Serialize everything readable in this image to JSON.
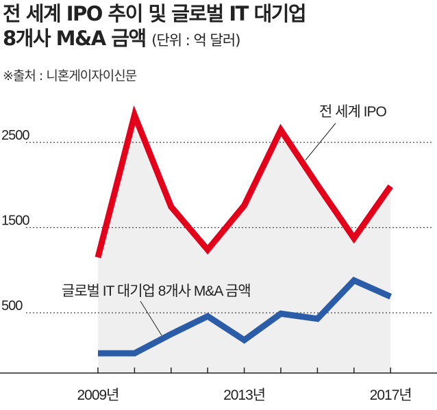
{
  "header": {
    "title_line1": "전 세계 IPO 추이 및 글로벌 IT 대기업",
    "title_line2": "8개사 M&A 금액",
    "unit": "(단위 : 억 달러)",
    "source": "※출처 : 니혼게이자이신문"
  },
  "chart_data": {
    "type": "line",
    "title": "전 세계 IPO 추이 및 글로벌 IT 대기업 8개사 M&A 금액",
    "ylabel": "억 달러",
    "x": [
      2009,
      2010,
      2011,
      2012,
      2013,
      2014,
      2015,
      2016,
      2017
    ],
    "x_tick_labels": [
      {
        "x": 2009,
        "label": "2009년"
      },
      {
        "x": 2013,
        "label": "2013년"
      },
      {
        "x": 2017,
        "label": "2017년"
      }
    ],
    "y_ticks": [
      500,
      1500,
      2500
    ],
    "y_tick_labels": [
      "500",
      "1500",
      "2500"
    ],
    "ylim": [
      -210,
      3000
    ],
    "grid": "horizontal dotted",
    "series": [
      {
        "name": "전 세계 IPO",
        "color": "#e3001b",
        "values": [
          1150,
          2820,
          1745,
          1240,
          1760,
          2645,
          2000,
          1375,
          1985
        ]
      },
      {
        "name": "글로벌 IT 대기업 8개사 M&A 금액",
        "color": "#2b5ca8",
        "values": [
          25,
          25,
          250,
          460,
          180,
          490,
          430,
          880,
          690
        ]
      }
    ]
  }
}
